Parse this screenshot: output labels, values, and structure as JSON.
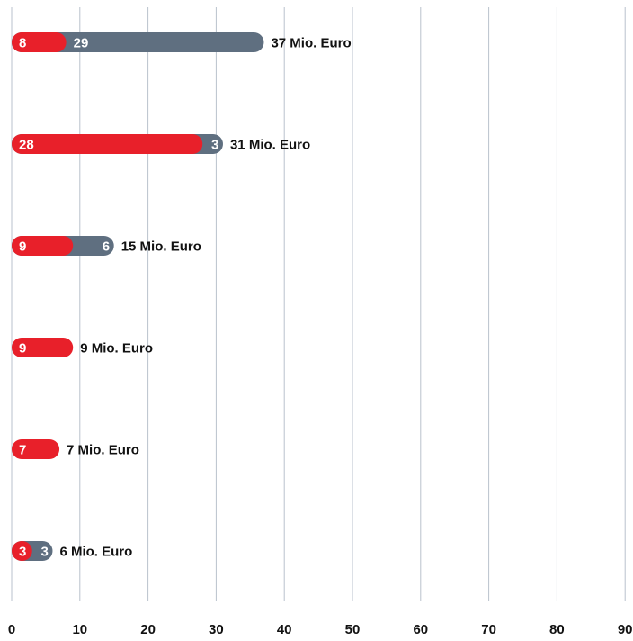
{
  "chart_data": {
    "type": "bar",
    "orientation": "horizontal",
    "stacked": true,
    "xlim": [
      0,
      90
    ],
    "xticks": [
      "0",
      "10",
      "20",
      "30",
      "40",
      "50",
      "60",
      "70",
      "80",
      "90"
    ],
    "grid": true,
    "colors": {
      "series_a": "#e8202a",
      "series_b": "#5f6f80"
    },
    "series": [
      {
        "values": [
          8,
          28,
          9,
          9,
          7,
          3
        ]
      },
      {
        "values": [
          29,
          3,
          6,
          0,
          0,
          3
        ]
      }
    ],
    "totals": [
      37,
      31,
      15,
      9,
      7,
      6
    ],
    "total_labels": [
      "37 Mio. Euro",
      "31 Mio. Euro",
      "15 Mio. Euro",
      "9 Mio. Euro",
      "7 Mio. Euro",
      "6 Mio. Euro"
    ]
  }
}
